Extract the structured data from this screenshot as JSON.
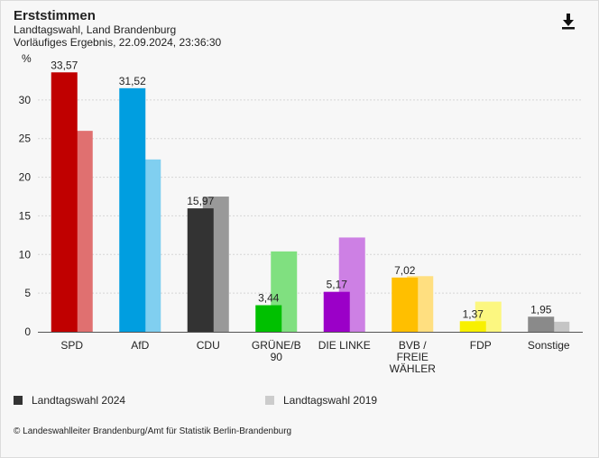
{
  "header": {
    "title": "Erststimmen",
    "subtitle1": "Landtagswahl, Land Brandenburg",
    "subtitle2": "Vorläufiges Ergebnis, 22.09.2024, 23:36:30"
  },
  "download_icon": "download-icon",
  "chart_data": {
    "type": "bar",
    "ylabel": "%",
    "ylim": [
      0,
      35
    ],
    "yticks": [
      0,
      5,
      10,
      15,
      20,
      25,
      30
    ],
    "yticklabels": [
      "0",
      "5",
      "10",
      "15",
      "20",
      "25",
      "30"
    ],
    "grid": true,
    "legend_position": "bottom",
    "categories": [
      "SPD",
      "AfD",
      "CDU",
      "GRÜNE/B\n90",
      "DIE LINKE",
      "BVB /\nFREIE\nWÄHLER",
      "FDP",
      "Sonstige"
    ],
    "series": [
      {
        "name": "Landtagswahl 2024",
        "values": [
          33.57,
          31.52,
          15.97,
          3.44,
          5.17,
          7.02,
          1.37,
          1.95
        ],
        "labels": [
          "33,57",
          "31,52",
          "15,97",
          "3,44",
          "5,17",
          "7,02",
          "1,37",
          "1,95"
        ],
        "colors": [
          "#c00000",
          "#009ee0",
          "#333333",
          "#00c000",
          "#9b00c8",
          "#ffbf00",
          "#f8f000",
          "#8a8a8a"
        ]
      },
      {
        "name": "Landtagswahl 2019",
        "values": [
          26.0,
          22.3,
          17.5,
          10.4,
          12.2,
          7.2,
          3.9,
          1.3
        ],
        "colors": [
          "#e07070",
          "#80cff0",
          "#999999",
          "#80e080",
          "#cd80e4",
          "#ffdf80",
          "#fcf780",
          "#c5c5c5"
        ]
      }
    ],
    "legend_colors": [
      "#333333",
      "#cccccc"
    ]
  },
  "footer": {
    "credit": "© Landeswahlleiter Brandenburg/Amt für Statistik Berlin-Brandenburg"
  }
}
